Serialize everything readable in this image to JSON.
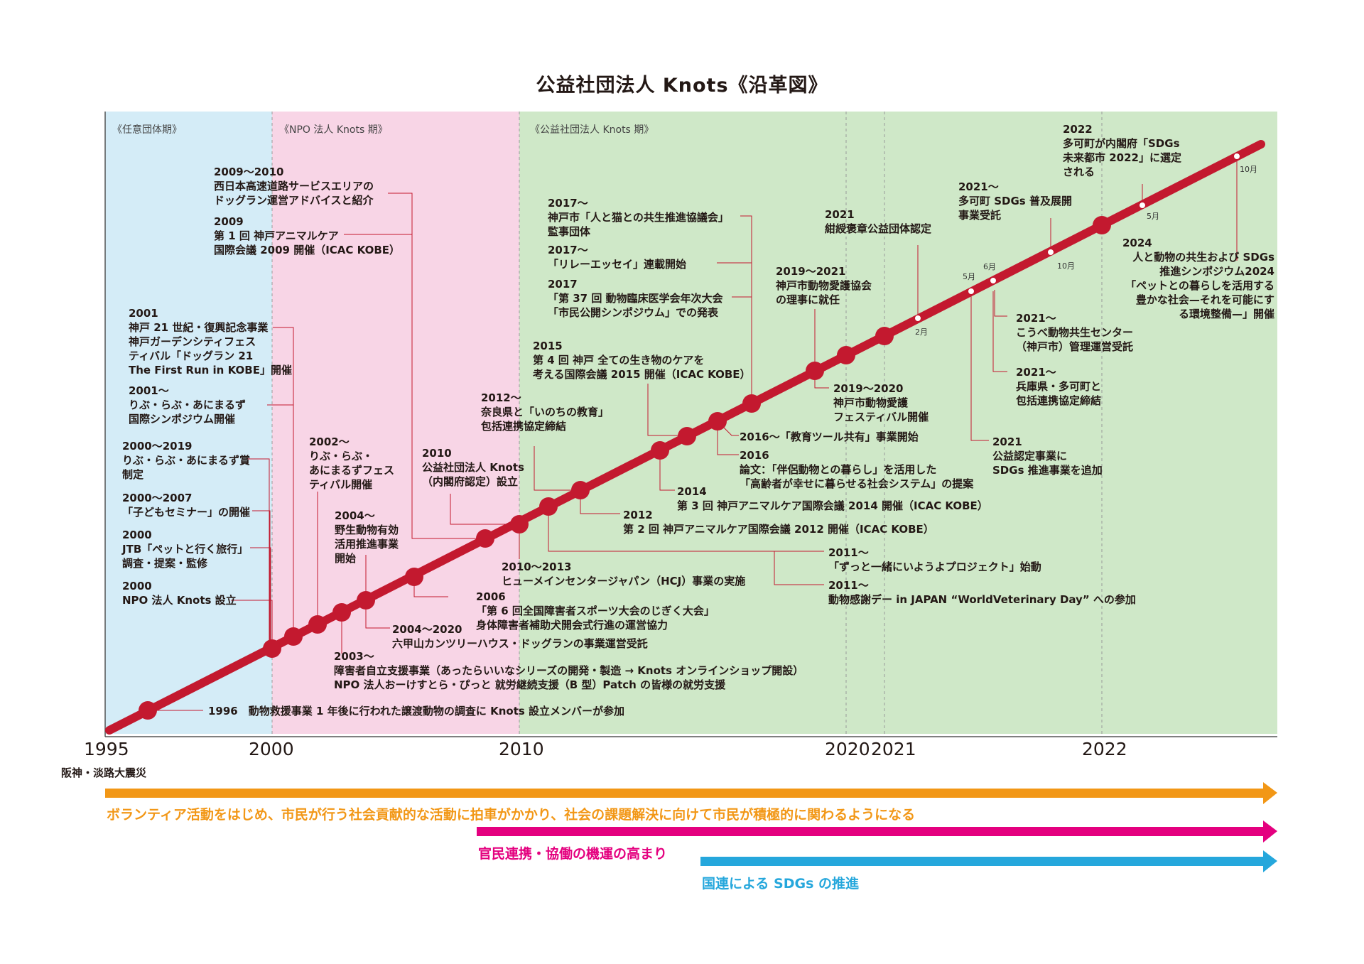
{
  "title": "公益社団法人 Knots《沿革図》",
  "periods": [
    {
      "label": "《任意団体期》",
      "color": "#d4ecf7"
    },
    {
      "label": "《NPO 法人 Knots 期》",
      "color": "#f8d5e6"
    },
    {
      "label": "《公益社団法人 Knots 期》",
      "color": "#cfe8c8"
    }
  ],
  "colors": {
    "timeline": "#c3192f",
    "orange": "#f29716",
    "magenta": "#e4007f",
    "cyan": "#25a7dc"
  },
  "axis": {
    "years": [
      "1995",
      "2000",
      "2010",
      "2020",
      "2021",
      "2022"
    ],
    "note_1995": "阪神・淡路大震災"
  },
  "trends": [
    {
      "text": "ボランティア活動をはじめ、市民が行う社会貢献的な活動に拍車がかかり、社会の課題解決に向けて市民が積極的に関わるようになる",
      "color": "#f29716"
    },
    {
      "text": "官民連携・協働の機運の高まり",
      "color": "#e4007f"
    },
    {
      "text": "国連による SDGs の推進",
      "color": "#25a7dc"
    }
  ],
  "months": {
    "m2": "2月",
    "m5a": "5月",
    "m6": "6月",
    "m10a": "10月",
    "m5b": "5月",
    "m10b": "10月"
  },
  "events": {
    "e1996": "1996　動物救援事業 1 年後に行われた譲渡動物の調査に Knots 設立メンバーが参加",
    "e2000npo": [
      "2000",
      "NPO 法人 Knots 設立"
    ],
    "e2000jtb": [
      "2000",
      "JTB「ペットと行く旅行」",
      "調査・提案・監修"
    ],
    "e2000kids": [
      "2000〜2007",
      "「子どもセミナー」の開催"
    ],
    "e2000award": [
      "2000〜2019",
      "りぶ・らぶ・あにまるず賞",
      "制定"
    ],
    "e2001sym": [
      "2001〜",
      "りぶ・らぶ・あにまるず",
      "国際シンポジウム開催"
    ],
    "e2001run": [
      "2001",
      "神戸 21 世紀・復興記念事業",
      "神戸ガーデンシティフェス",
      "ティバル「ドッグラン 21",
      "The First Run in KOBE」開催"
    ],
    "e2009conf": [
      "2009",
      "第 1 回 神戸アニマルケア",
      "国際会議 2009 開催（ICAC KOBE）"
    ],
    "e2009sa": [
      "2009〜2010",
      "西日本高速道路サービスエリアの",
      "ドッグラン運営アドバイスと紹介"
    ],
    "e2002fes": [
      "2002〜",
      "りぶ・らぶ・",
      "あにまるずフェス",
      "ティバル開催"
    ],
    "e2004wild": [
      "2004〜",
      "野生動物有効",
      "活用推進事業",
      "開始"
    ],
    "e2010pub": [
      "2010",
      "公益社団法人 Knots",
      "（内閣府認定）設立"
    ],
    "e2012nara": [
      "2012〜",
      "奈良県と「いのちの教育」",
      "包括連携協定締結"
    ],
    "e2015conf": [
      "2015",
      "第 4 回 神戸 全ての生き物のケアを",
      "考える国際会議 2015 開催（ICAC KOBE）"
    ],
    "e2017cat": [
      "2017〜",
      "神戸市「人と猫との共生推進協議会」",
      "監事団体"
    ],
    "e2017relay": [
      "2017〜",
      "「リレーエッセイ」連載開始"
    ],
    "e2017sym": [
      "2017",
      "「第 37 回 動物臨床医学会年次大会",
      "「市民公開シンポジウム」での発表"
    ],
    "e2019assoc": [
      "2019〜2021",
      "神戸市動物愛護協会",
      "の理事に就任"
    ],
    "e2021award": [
      "2021",
      "紺綬褒章公益団体認定"
    ],
    "e2021sdgs": [
      "2021〜",
      "多可町 SDGs 普及展開",
      "事業受託"
    ],
    "e2022city": [
      "2022",
      "多可町が内閣府「SDGs",
      "未来都市 2022」に選定",
      "される"
    ],
    "e2024sym": [
      "2024",
      "人と動物の共生および SDGs",
      "推進シンポジウム2024",
      "「ペットとの暮らしを活用する",
      "豊かな社会—それを可能にす",
      "る環境整備—」開催"
    ],
    "e2021center": [
      "2021〜",
      "こうべ動物共生センター",
      "（神戸市）管理運営受託"
    ],
    "e2021hyogo": [
      "2021〜",
      "兵庫県・多可町と",
      "包括連携協定締結"
    ],
    "e2021add": [
      "2021",
      "公益認定事業に",
      "SDGs 推進事業を追加"
    ],
    "e2019fes": [
      "2019〜2020",
      "神戸市動物愛護",
      "フェスティバル開催"
    ],
    "e2016tool": [
      "2016〜「教育ツール共有」事業開始"
    ],
    "e2016paper": [
      "2016",
      "論文：「伴侶動物との暮らし」を活用した",
      "「高齢者が幸せに暮らせる社会システム」の提案"
    ],
    "e2014conf": [
      "2014",
      "第 3 回 神戸アニマルケア国際会議 2014 開催（ICAC KOBE）"
    ],
    "e2012conf": [
      "2012",
      "第 2 回 神戸アニマルケア国際会議 2012 開催（ICAC KOBE）"
    ],
    "e2011proj": [
      "2011〜",
      "「ずっと一緒にいようよプロジェクト」始動"
    ],
    "e2011day": [
      "2011〜",
      "動物感謝デー in JAPAN “WorldVeterinary Day” への参加"
    ],
    "e2010hcj": [
      "2010〜2013",
      "ヒューメインセンタージャパン（HCJ）事業の実施"
    ],
    "e2006sports": [
      "2006",
      "「第 6 回全国障害者スポーツ大会のじぎく大会」",
      "身体障害者補助犬開会式行進の運営協力"
    ],
    "e2004run": [
      "2004〜2020",
      "六甲山カンツリーハウス・ドッグランの事業運営受託"
    ],
    "e2003support": [
      "2003〜",
      "障害者自立支援事業（あったらいいなシリーズの開発・製造 → Knots オンラインショップ開設）",
      "NPO 法人おーけすとら・ぴっと 就労継続支援（B 型）Patch の皆様の就労支援"
    ]
  }
}
